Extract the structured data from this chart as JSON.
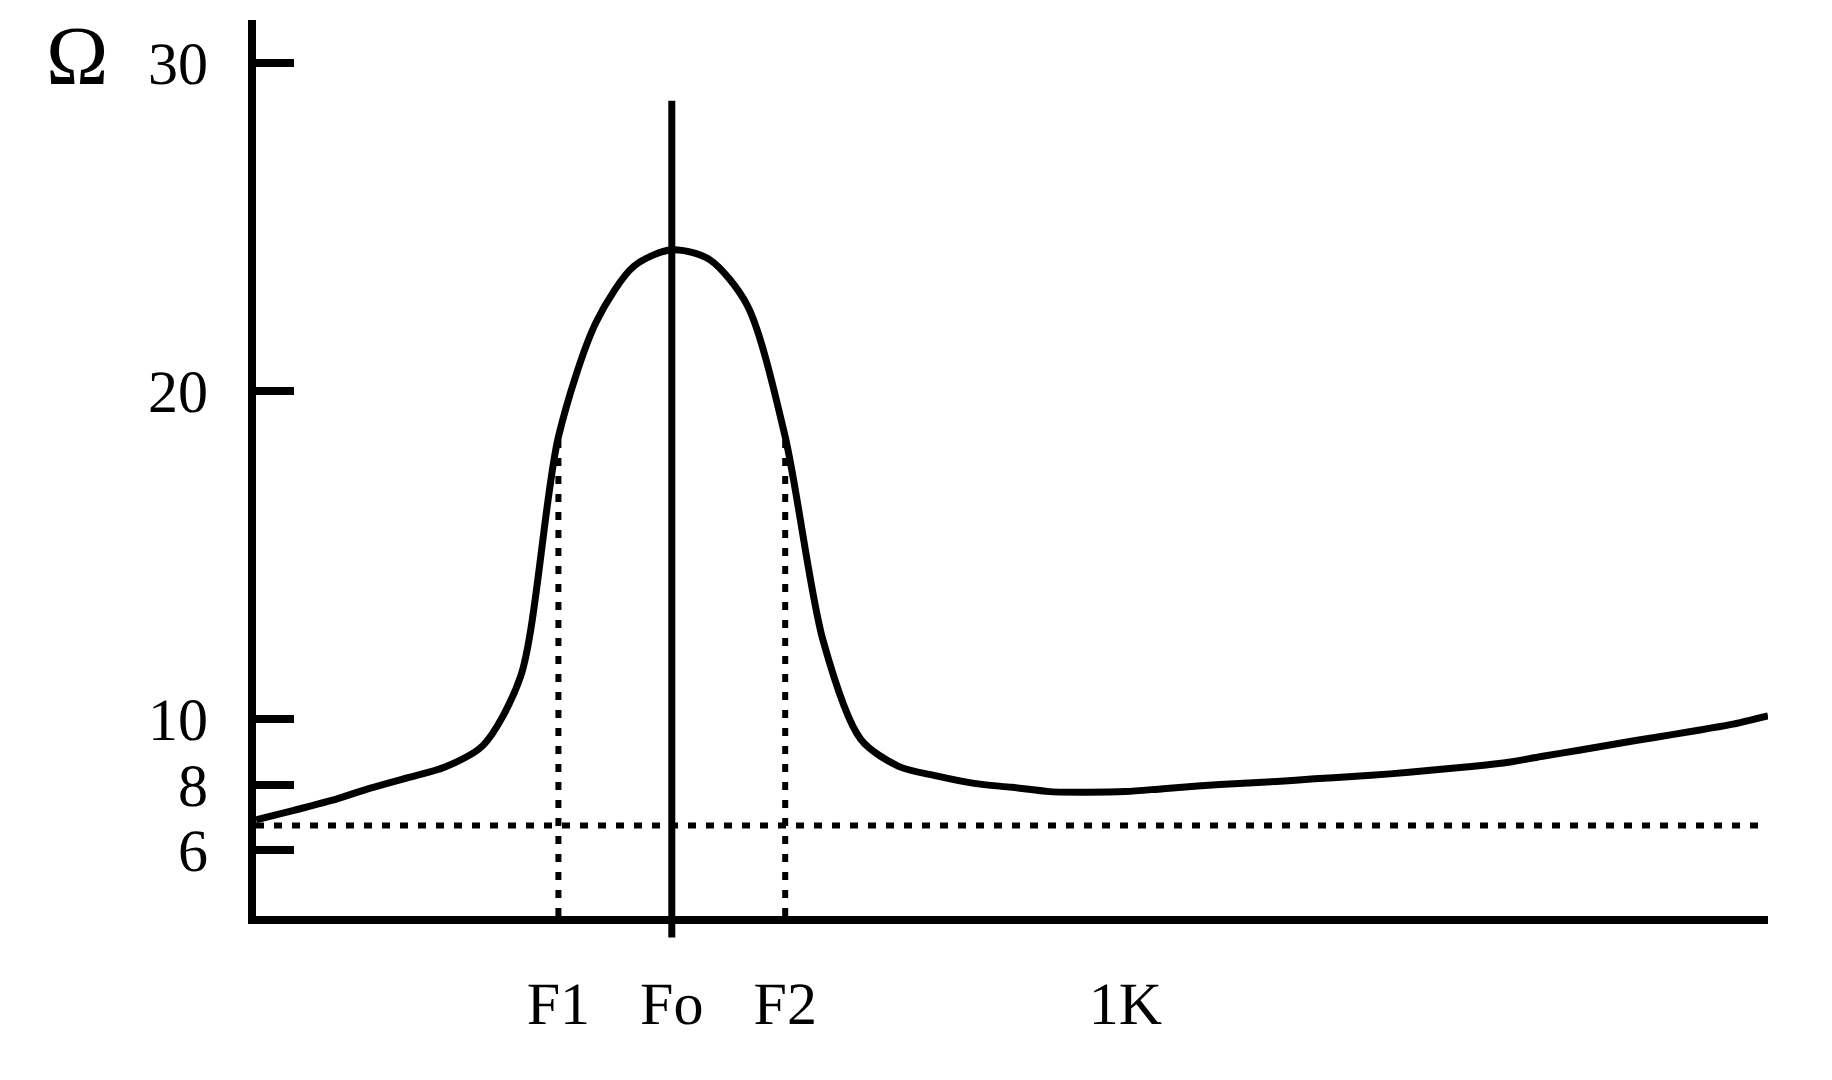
{
  "chart_data": {
    "type": "line",
    "ylabel": "Ω",
    "categories": [
      null,
      null,
      null,
      null,
      null,
      null,
      null,
      null,
      "F1",
      null,
      null,
      "Fo",
      null,
      null,
      "F2",
      null,
      null,
      null,
      null,
      null,
      null,
      null,
      null,
      "1K",
      null,
      null,
      null,
      null,
      null,
      null,
      null,
      null,
      null,
      null,
      null,
      null,
      null,
      null,
      null,
      null,
      null
    ],
    "series": [
      {
        "color": "#000000",
        "values": [
          6.93,
          7.22,
          7.52,
          7.89,
          8.21,
          8.54,
          9.19,
          11.3,
          18.6,
          22.1,
          23.8,
          24.3,
          24.0,
          22.6,
          18.6,
          12.4,
          9.38,
          8.56,
          8.27,
          8.04,
          7.92,
          7.79,
          7.77,
          7.79,
          7.88,
          7.97,
          8.04,
          8.1,
          8.18,
          8.25,
          8.33,
          8.43,
          8.54,
          8.66,
          8.86,
          9.05,
          9.25,
          9.44,
          9.63,
          9.83,
          10.1
        ]
      }
    ],
    "ylim": [
      4.0,
      31.3
    ],
    "yticks": [
      30,
      20,
      10,
      8,
      6
    ],
    "ref_lines": [
      {
        "axis": "x",
        "value": "F1",
        "line_style": "dotted",
        "color": "#000000"
      },
      {
        "axis": "x",
        "value": "Fo",
        "line_style": "solid",
        "color": "#000000"
      },
      {
        "axis": "x",
        "value": "F2",
        "line_style": "dotted",
        "color": "#000000"
      },
      {
        "axis": "y",
        "value": 6.76,
        "line_style": "dotted",
        "color": "#000000"
      }
    ],
    "grid": false,
    "line_style": "solid"
  }
}
